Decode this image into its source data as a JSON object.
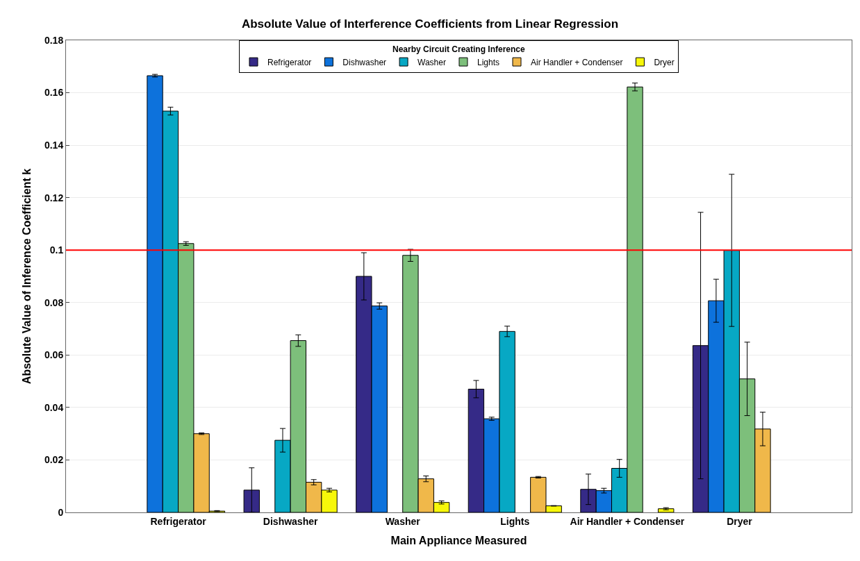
{
  "chart_data": {
    "type": "bar",
    "title": "Absolute Value of Interference Coefficients from Linear Regression",
    "xlabel": "Main Appliance Measured",
    "ylabel": "Absolute Value of Inference Coefficient k",
    "legend_title": "Nearby Circuit Creating Inference",
    "categories": [
      "Refrigerator",
      "Dishwasher",
      "Washer",
      "Lights",
      "Air Handler + Condenser",
      "Dryer"
    ],
    "series": [
      {
        "name": "Refrigerator",
        "color": "#352a87",
        "values": [
          null,
          0.0085,
          0.09,
          0.047,
          0.0088,
          0.0636
        ],
        "errors": [
          null,
          0.0085,
          0.009,
          0.0033,
          0.0058,
          0.0508
        ]
      },
      {
        "name": "Dishwasher",
        "color": "#0d72dc",
        "values": [
          0.1665,
          null,
          0.0787,
          0.0357,
          0.0083,
          0.0807
        ],
        "errors": [
          0.0005,
          null,
          0.0012,
          0.0006,
          0.0009,
          0.0082
        ]
      },
      {
        "name": "Washer",
        "color": "#07a8c4",
        "values": [
          0.153,
          0.0275,
          null,
          0.069,
          0.0168,
          0.0999
        ],
        "errors": [
          0.0015,
          0.0045,
          null,
          0.002,
          0.0034,
          0.029
        ]
      },
      {
        "name": "Lights",
        "color": "#7dbf7b",
        "values": [
          0.1025,
          0.0655,
          0.098,
          null,
          0.1622,
          0.0509
        ],
        "errors": [
          0.0007,
          0.0022,
          0.0023,
          null,
          0.0015,
          0.014
        ]
      },
      {
        "name": "Air Handler + Condenser",
        "color": "#f0b84a",
        "values": [
          0.03,
          0.0115,
          0.0128,
          0.0134,
          null,
          0.0318
        ],
        "errors": [
          0.0003,
          0.001,
          0.0011,
          0.0003,
          null,
          0.0064
        ]
      },
      {
        "name": "Dryer",
        "color": "#f7f70a",
        "values": [
          0.0005,
          0.0085,
          0.0038,
          0.0025,
          0.0014,
          null
        ],
        "errors": [
          0.0002,
          0.0007,
          0.0006,
          0.0001,
          0.0004,
          null
        ]
      }
    ],
    "ylim": [
      0,
      0.18
    ],
    "yticks": [
      0,
      0.02,
      0.04,
      0.06,
      0.08,
      0.1,
      0.12,
      0.14,
      0.16,
      0.18
    ],
    "ref_lines": [
      {
        "axis": "y",
        "value": 0.1,
        "color": "#ff0000"
      }
    ],
    "grid": "y",
    "legend": "top"
  }
}
